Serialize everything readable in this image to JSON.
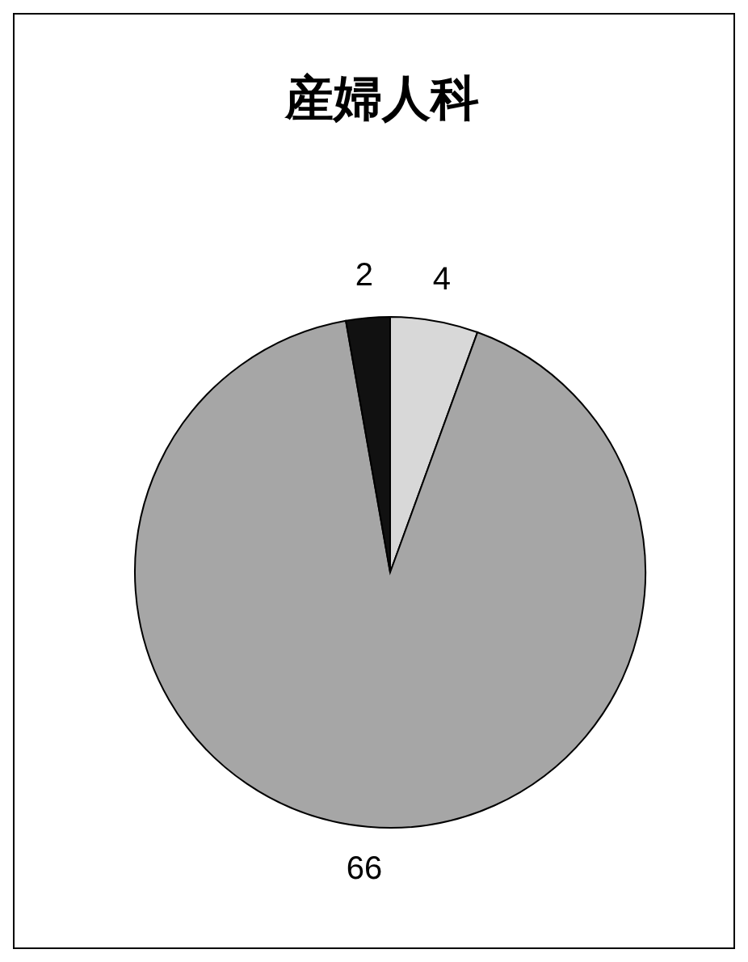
{
  "chart_data": {
    "type": "pie",
    "title": "産婦人科",
    "categories": [
      null,
      null,
      null
    ],
    "values": [
      4,
      66,
      2
    ],
    "colors": [
      "#d8d8d8",
      "#a6a6a6",
      "#111111"
    ],
    "data_labels": true,
    "legend": false
  }
}
